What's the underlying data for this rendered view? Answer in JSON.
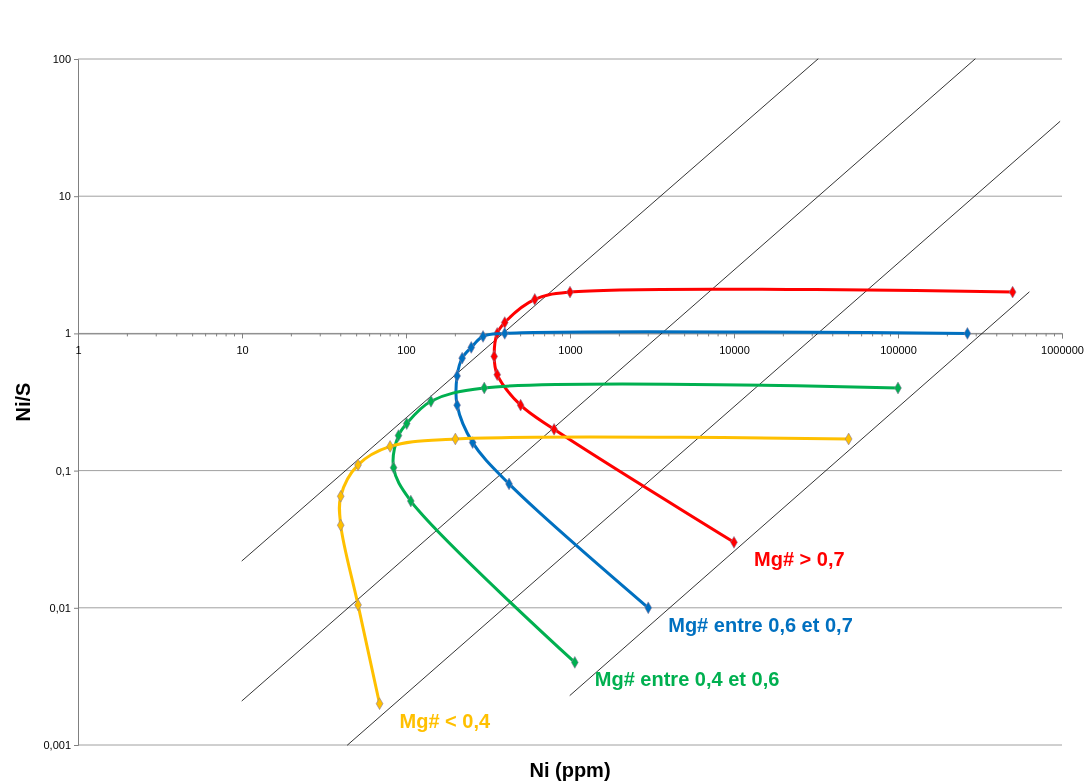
{
  "chart_data": {
    "type": "line",
    "xlabel": "Ni (ppm)",
    "ylabel": "Ni/S",
    "log": "xy",
    "grid": "y",
    "marker": "diamond",
    "line_style": "solid",
    "xlim": [
      1,
      1000000
    ],
    "xticks": [
      1,
      10,
      100,
      1000,
      10000,
      100000,
      1000000
    ],
    "ylim": [
      0.001,
      100
    ],
    "yticks": [
      {
        "value": 0.001,
        "label": "0,001"
      },
      {
        "value": 0.01,
        "label": "0,01"
      },
      {
        "value": 0.1,
        "label": "0,1"
      },
      {
        "value": 1,
        "label": "1"
      },
      {
        "value": 10,
        "label": "10"
      },
      {
        "value": 100,
        "label": "100"
      }
    ],
    "series": [
      {
        "color": "#000000",
        "marker": "none",
        "x": [
          10,
          32500
        ],
        "values": [
          0.022,
          100
        ]
      },
      {
        "color": "#000000",
        "marker": "none",
        "x": [
          10,
          295000
        ],
        "values": [
          0.0021,
          100
        ]
      },
      {
        "color": "#000000",
        "marker": "none",
        "x": [
          44,
          970000
        ],
        "values": [
          0.001,
          35
        ]
      },
      {
        "color": "#000000",
        "marker": "none",
        "x": [
          1000,
          630000
        ],
        "values": [
          0.0023,
          2
        ]
      },
      {
        "name": "Mg# > 0,7",
        "color": "#ff0000",
        "x": [
          500000,
          1000,
          610,
          400,
          360,
          345,
          360,
          500,
          800,
          10000
        ],
        "values": [
          2,
          2,
          1.77,
          1.2,
          1,
          0.68,
          0.5,
          0.3,
          0.2,
          0.03
        ]
      },
      {
        "name": "Mg# entre 0,6 et 0,7",
        "color": "#0070c0",
        "x": [
          265000,
          400,
          295,
          250,
          220,
          205,
          205,
          255,
          425,
          3000
        ],
        "values": [
          1,
          1,
          0.95,
          0.79,
          0.66,
          0.49,
          0.3,
          0.16,
          0.08,
          0.01
        ]
      },
      {
        "name": "Mg# entre 0,4 et 0,6",
        "color": "#00b050",
        "x": [
          100000,
          300,
          142,
          101,
          90,
          84,
          107,
          1070
        ],
        "values": [
          0.4,
          0.4,
          0.32,
          0.22,
          0.18,
          0.105,
          0.06,
          0.004
        ]
      },
      {
        "name": "Mg# < 0,4",
        "color": "#ffc000",
        "x": [
          50000,
          200,
          80,
          51,
          40,
          40,
          51,
          69
        ],
        "values": [
          0.17,
          0.17,
          0.15,
          0.11,
          0.065,
          0.04,
          0.0105,
          0.002
        ]
      }
    ]
  }
}
